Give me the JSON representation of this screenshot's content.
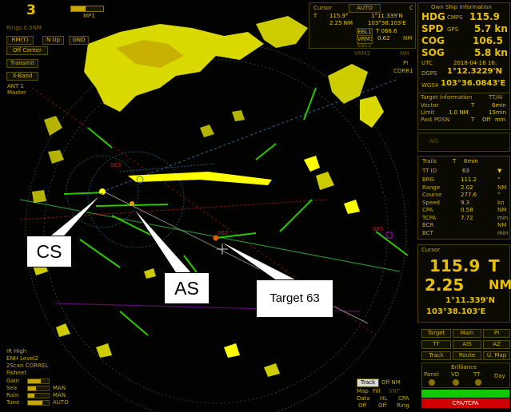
{
  "top_left": {
    "range_number": "3",
    "mp_label": "MP1",
    "mp_level": 0.45,
    "range_rings": "Rings 0.5NM"
  },
  "mode_buttons": [
    {
      "name": "rmt-button",
      "label": "RM(T)"
    },
    {
      "name": "north-up-button",
      "label": "N Up"
    },
    {
      "name": "gnd-button",
      "label": "GND"
    },
    {
      "name": "off-center-button",
      "label": "Off Center"
    },
    {
      "name": "transmit-button",
      "label": "Transmit"
    },
    {
      "name": "x-band-button",
      "label": "X-Band"
    }
  ],
  "antenna": {
    "line1": "ANT 1",
    "line2": "Master"
  },
  "cursor_panel": {
    "title": "Cursor",
    "mode": "AUTO",
    "mode_suffix": "C",
    "t_label": "T",
    "bearing": "115.9°",
    "lat": "1°11.339'N",
    "range": "2.25 NM",
    "lon": "103°38.103'E",
    "ebl1_label": "EBL1",
    "ebl1_value": "T 066.6",
    "vrm1_label": "VRM1",
    "vrm1_value": "0.62",
    "vrm1_unit": "NM",
    "ebl2_label": "EBL2",
    "vrm2_label": "VRM2",
    "vrm2_unit": "NM",
    "pi_label": "PI",
    "corr_label": "CORR1"
  },
  "ownship": {
    "title": "Own Ship Information",
    "hdg_label": "HDG",
    "hdg_source": "CMPS",
    "hdg_value": "115.9",
    "spd_label": "SPD",
    "spd_source": "GPS",
    "spd_value": "5.7 kn",
    "cog_label": "COG",
    "cog_value": "106.5",
    "sog_label": "SOG",
    "sog_value": "5.8 kn",
    "utc_label": "UTC",
    "utc_value": "2018-04-16 16:",
    "dgps_label": "DGPS",
    "lat": "1°12.3229'N",
    "wgs_label": "WGS4",
    "lon": "103°36.0843'E"
  },
  "target_info": {
    "title": "Target Information",
    "title_suffix": "TT/AI",
    "vector_label": "Vector",
    "vector_mode": "T",
    "vector_time": "6min",
    "limit_label": "Limit",
    "limit_value": "1.0 NM",
    "limit_time": "15min",
    "past_posn_label": "Past POSN",
    "past_posn_mode": "T",
    "past_posn_value": "Off",
    "past_posn_unit": "min",
    "ais_label": "AIS"
  },
  "trails": {
    "label": "Trails",
    "mode": "T",
    "time": "6min",
    "tt_id_label": "TT ID",
    "tt_id_value": "63",
    "rows": [
      {
        "label": "BRG",
        "value": "111.2",
        "unit": "°"
      },
      {
        "label": "Range",
        "value": "2.02",
        "unit": "NM"
      },
      {
        "label": "Course",
        "value": "277.6",
        "unit": "°"
      },
      {
        "label": "Speed",
        "value": "9.3",
        "unit": "kn"
      },
      {
        "label": "CPA",
        "value": "0.58",
        "unit": "NM"
      },
      {
        "label": "TCPA",
        "value": "7.72",
        "unit": "min"
      },
      {
        "label": "BCR",
        "value": "",
        "unit": "NM"
      },
      {
        "label": "BCT",
        "value": "",
        "unit": "min"
      }
    ]
  },
  "cursor_big": {
    "title": "Cursor",
    "bearing": "115.9",
    "bearing_unit": "T",
    "range": "2.25",
    "range_unit": "NM",
    "lat": "1°11.339'N",
    "lon": "103°38.103'E"
  },
  "bottom_buttons": [
    {
      "name": "target-button",
      "label": "Target"
    },
    {
      "name": "main-button",
      "label": "Main"
    },
    {
      "name": "pi-button",
      "label": "PI"
    },
    {
      "name": "tt-button",
      "label": "TT"
    },
    {
      "name": "ais-button",
      "label": "AIS"
    },
    {
      "name": "az-button",
      "label": "AZ"
    },
    {
      "name": "track-button",
      "label": "Track"
    },
    {
      "name": "route-button",
      "label": "Route"
    },
    {
      "name": "u-map-button",
      "label": "U. Map"
    }
  ],
  "brilliance": {
    "title": "Brilliance",
    "items": [
      "Panel",
      "VD",
      "TT",
      "Day"
    ]
  },
  "left_bottom": {
    "ir_label": "IR High",
    "enh_label": "ENH Level2",
    "scan_label": "2Scan CORREL",
    "fishnet_label": "Fishnet",
    "gain_label": "Gain",
    "sea_label": "Sea",
    "sea_mode": "MAN",
    "rain_label": "Rain",
    "rain_mode": "MAN",
    "tune_label": "Tune",
    "tune_mode": "AUTO",
    "gain_level": 0.6,
    "sea_level": 0.4,
    "rain_level": 0.3,
    "tune_level": 0.7
  },
  "track_panel": {
    "track_label": "Track",
    "track_value": "Off NM",
    "map_label": "Map",
    "map_value": "Fill",
    "map_suffix": "SNT",
    "data_label": "Data",
    "data_value": "Off",
    "hl_label": "HL",
    "hl_value": "Off",
    "cpa_label": "CPA",
    "cpa_value": "Ring"
  },
  "radar": {
    "target_labels": [
      "063",
      "065",
      "062"
    ]
  },
  "callouts": {
    "cs": "CS",
    "as": "AS",
    "target": "Target 63"
  },
  "cpa_alarm": "CPA/TCPA",
  "colors": {
    "accent": "#e8c000",
    "echo": "#ffff00",
    "trail": "#2dc800",
    "alarm": "#d00000"
  }
}
